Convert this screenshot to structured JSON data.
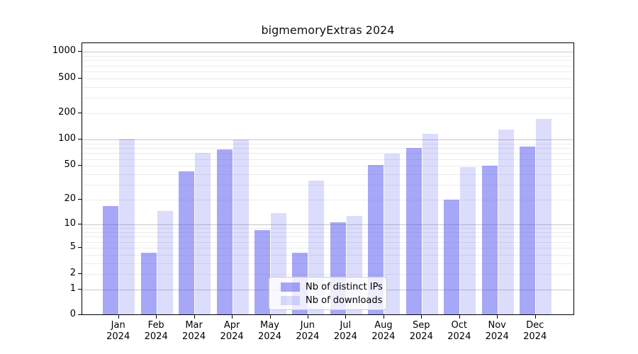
{
  "title": "bigmemoryExtras 2024",
  "legend": {
    "items": [
      {
        "label": "Nb of distinct IPs",
        "color": "rgba(80,80,240,0.5)"
      },
      {
        "label": "Nb of downloads",
        "color": "rgba(80,80,240,0.2)"
      }
    ]
  },
  "chart_data": {
    "type": "bar",
    "title": "bigmemoryExtras 2024",
    "categories": [
      "Jan 2024",
      "Feb 2024",
      "Mar 2024",
      "Apr 2024",
      "May 2024",
      "Jun 2024",
      "Jul 2024",
      "Aug 2024",
      "Sep 2024",
      "Oct 2024",
      "Nov 2024",
      "Dec 2024"
    ],
    "series": [
      {
        "name": "Nb of distinct IPs",
        "color": "rgba(80,80,240,0.5)",
        "values": [
          16,
          4,
          41,
          73,
          8,
          4,
          10,
          49,
          76,
          19,
          48,
          79
        ]
      },
      {
        "name": "Nb of downloads",
        "color": "rgba(80,80,240,0.2)",
        "values": [
          98,
          14,
          67,
          95,
          13,
          32,
          12,
          66,
          110,
          46,
          125,
          163
        ]
      }
    ],
    "y_scale": "log10(value+1)",
    "y_ticks": [
      0,
      1,
      2,
      5,
      10,
      20,
      50,
      100,
      200,
      500,
      1000
    ],
    "ylim": [
      0,
      1250
    ],
    "xlabel": "",
    "ylabel": "",
    "grid": "both-horizontal",
    "legend_position": "lower center"
  },
  "colors": {
    "major_grid": "#c9c9c9",
    "minor_grid": "#ececec",
    "spine": "#000000",
    "background": "#ffffff"
  }
}
